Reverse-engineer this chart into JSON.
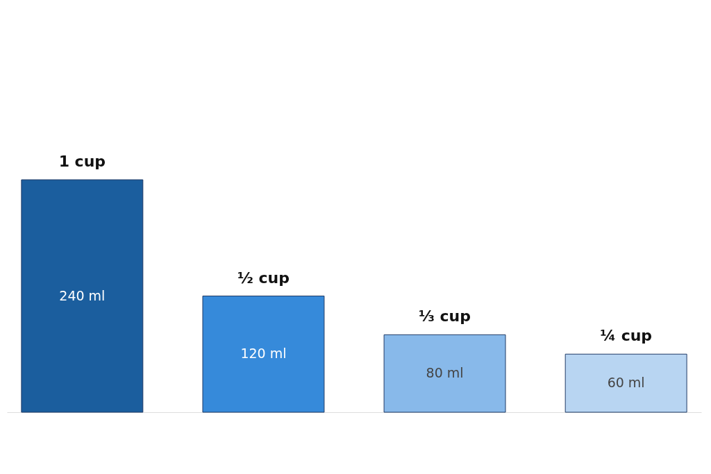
{
  "chart_data": {
    "type": "bar",
    "categories": [
      "1 cup",
      "½ cup",
      "⅓ cup",
      "¼ cup"
    ],
    "values": [
      240,
      120,
      80,
      60
    ],
    "value_labels": [
      "240 ml",
      "120 ml",
      "80 ml",
      "60 ml"
    ],
    "colors": [
      "#1b5e9e",
      "#368ada",
      "#88b9ea",
      "#b8d5f2"
    ],
    "grid": false,
    "legend": false
  }
}
